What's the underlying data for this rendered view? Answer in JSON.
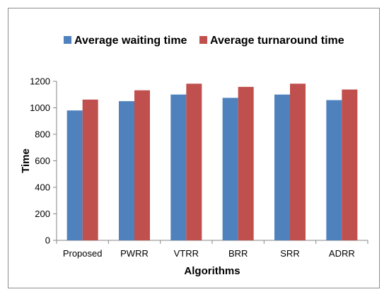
{
  "chart_data": {
    "type": "bar",
    "title": "",
    "xlabel": "Algorithms",
    "ylabel": "Time",
    "categories": [
      "Proposed",
      "PWRR",
      "VTRR",
      "BRR",
      "SRR",
      "ADRR"
    ],
    "series": [
      {
        "name": "Average waiting time",
        "color": "#4f81bd",
        "values": [
          980,
          1050,
          1100,
          1075,
          1100,
          1058
        ]
      },
      {
        "name": "Average turnaround time",
        "color": "#c0504d",
        "values": [
          1062,
          1132,
          1182,
          1158,
          1182,
          1138
        ]
      }
    ],
    "ylim": [
      0,
      1200
    ],
    "yticks": [
      0,
      200,
      400,
      600,
      800,
      1000,
      1200
    ],
    "grid": false,
    "legend_position": "top"
  }
}
